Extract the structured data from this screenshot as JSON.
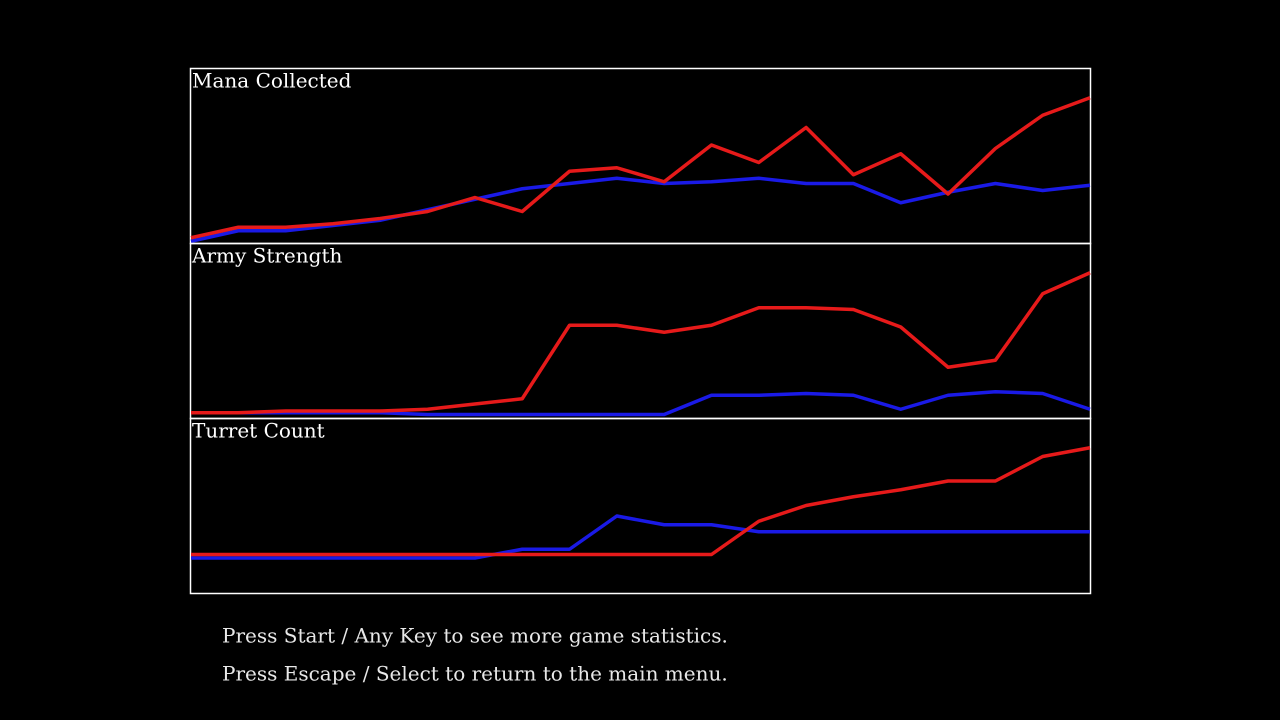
{
  "chart_data": [
    {
      "type": "line",
      "title": "Mana Collected",
      "ylim": [
        0,
        100
      ],
      "series": [
        {
          "color": "#1a1ae6",
          "values": [
            1,
            7,
            7,
            10,
            13,
            19,
            25,
            31,
            34,
            37,
            34,
            35,
            37,
            34,
            34,
            23,
            29,
            34,
            30,
            33
          ]
        },
        {
          "color": "#e61a1a",
          "values": [
            3,
            9,
            9,
            11,
            14,
            18,
            26,
            18,
            41,
            43,
            35,
            56,
            46,
            66,
            39,
            51,
            28,
            54,
            73,
            83
          ]
        }
      ]
    },
    {
      "type": "line",
      "title": "Army Strength",
      "ylim": [
        0,
        100
      ],
      "series": [
        {
          "color": "#1a1ae6",
          "values": [
            3,
            3,
            3,
            3,
            3,
            2,
            2,
            2,
            2,
            2,
            2,
            13,
            13,
            14,
            13,
            5,
            13,
            15,
            14,
            5
          ]
        },
        {
          "color": "#e61a1a",
          "values": [
            3,
            3,
            4,
            4,
            4,
            5,
            8,
            11,
            53,
            53,
            49,
            53,
            63,
            63,
            62,
            52,
            29,
            33,
            71,
            83
          ]
        }
      ]
    },
    {
      "type": "line",
      "title": "Turret Count",
      "ylim": [
        0,
        100
      ],
      "series": [
        {
          "color": "#1a1ae6",
          "values": [
            20,
            20,
            20,
            20,
            20,
            20,
            20,
            25,
            25,
            44,
            39,
            39,
            35,
            35,
            35,
            35,
            35,
            35,
            35,
            35
          ]
        },
        {
          "color": "#e61a1a",
          "values": [
            22,
            22,
            22,
            22,
            22,
            22,
            22,
            22,
            22,
            22,
            22,
            22,
            41,
            50,
            55,
            59,
            64,
            64,
            78,
            83
          ]
        }
      ]
    }
  ],
  "footer": {
    "lines": [
      "Press Start / Any Key to see more game statistics.",
      "Press Escape / Select to return to the main menu."
    ]
  }
}
